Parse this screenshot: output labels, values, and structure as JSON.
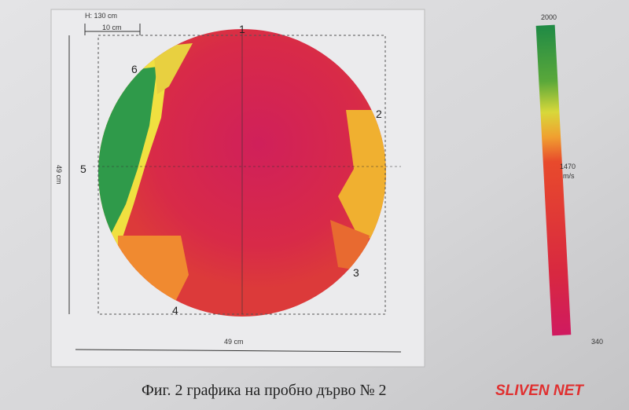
{
  "figure": {
    "height_label": "H: 130 cm",
    "scale_bar_label": "10 cm",
    "width_label": "49 cm",
    "depth_label": "49 cm",
    "markers": [
      "1",
      "2",
      "3",
      "4",
      "5",
      "6"
    ],
    "scale": {
      "top": "2000",
      "middle": "1470",
      "unit": "m/s",
      "bottom": "340"
    }
  },
  "caption": "Фиг. 2 графика на пробно дърво № 2",
  "watermark": "SLIVEN NET"
}
